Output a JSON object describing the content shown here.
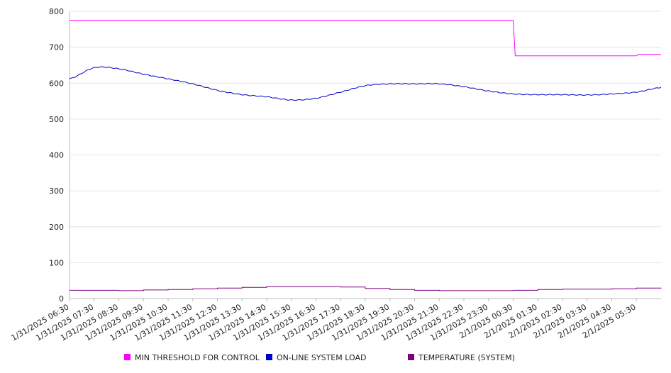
{
  "chart_data": {
    "type": "line",
    "ylim": [
      0,
      800
    ],
    "y_ticks": [
      0,
      100,
      200,
      300,
      400,
      500,
      600,
      700,
      800
    ],
    "x_tick_labels": [
      "1/31/2025 06:30",
      "1/31/2025 07:30",
      "1/31/2025 08:30",
      "1/31/2025 09:30",
      "1/31/2025 10:30",
      "1/31/2025 11:30",
      "1/31/2025 12:30",
      "1/31/2025 13:30",
      "1/31/2025 14:30",
      "1/31/2025 15:30",
      "1/31/2025 16:30",
      "1/31/2025 17:30",
      "1/31/2025 18:30",
      "1/31/2025 19:30",
      "1/31/2025 20:30",
      "1/31/2025 21:30",
      "1/31/2025 22:30",
      "1/31/2025 23:30",
      "2/1/2025 00:30",
      "2/1/2025 01:30",
      "2/1/2025 02:30",
      "2/1/2025 03:30",
      "2/1/2025 04:30",
      "2/1/2025 05:30"
    ],
    "x": [
      "1/31/2025 06:30",
      "1/31/2025 07:30",
      "1/31/2025 08:30",
      "1/31/2025 09:30",
      "1/31/2025 10:30",
      "1/31/2025 11:30",
      "1/31/2025 12:30",
      "1/31/2025 13:30",
      "1/31/2025 14:30",
      "1/31/2025 15:30",
      "1/31/2025 16:30",
      "1/31/2025 17:30",
      "1/31/2025 18:30",
      "1/31/2025 19:30",
      "1/31/2025 20:30",
      "1/31/2025 21:30",
      "1/31/2025 22:30",
      "1/31/2025 23:30",
      "2/1/2025 00:30",
      "2/1/2025 01:30",
      "2/1/2025 02:30",
      "2/1/2025 03:30",
      "2/1/2025 04:30",
      "2/1/2025 05:30",
      "2/1/2025 06:30"
    ],
    "legend_position": "bottom",
    "grid": true,
    "series": [
      {
        "name": "MIN THRESHOLD FOR CONTROL",
        "color": "#ff00ff",
        "step_points": [
          [
            "1/31/2025 06:30",
            775
          ],
          [
            "2/1/2025 00:30",
            775
          ],
          [
            "2/1/2025 00:35",
            676
          ],
          [
            "2/1/2025 05:30",
            676
          ],
          [
            "2/1/2025 05:35",
            680
          ],
          [
            "2/1/2025 06:30",
            680
          ]
        ]
      },
      {
        "name": "ON-LINE SYSTEM LOAD",
        "color": "#0000cc",
        "values": [
          612,
          643,
          640,
          625,
          612,
          598,
          580,
          568,
          562,
          553,
          558,
          575,
          593,
          598,
          598,
          598,
          590,
          578,
          570,
          568,
          568,
          567,
          570,
          575,
          588
        ]
      },
      {
        "name": "TEMPERATURE (SYSTEM)",
        "color": "#800080",
        "values": [
          23,
          23,
          22,
          24,
          25,
          27,
          29,
          31,
          33,
          33,
          33,
          32,
          28,
          25,
          23,
          22,
          22,
          22,
          23,
          25,
          26,
          26,
          27,
          29,
          30
        ]
      }
    ]
  }
}
